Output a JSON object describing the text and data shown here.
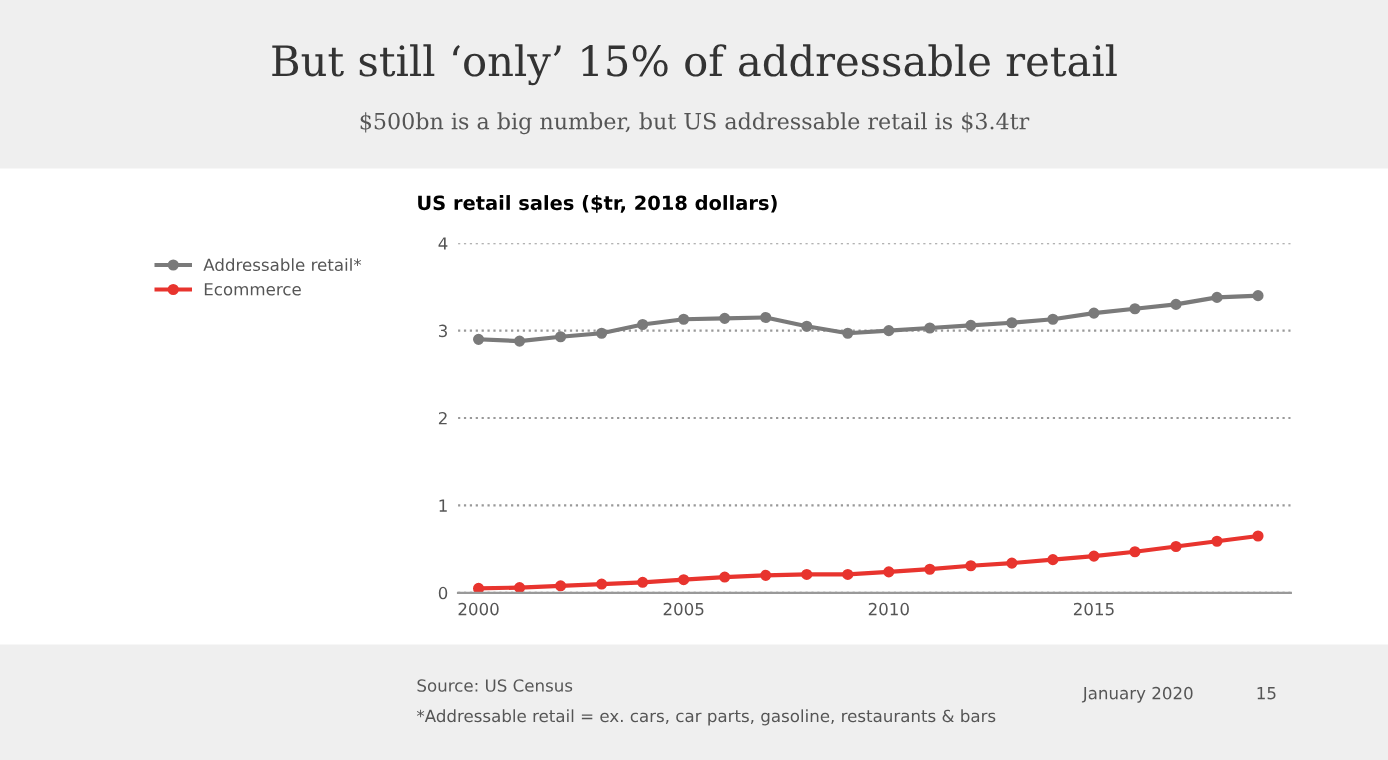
{
  "chart_data": {
    "type": "line",
    "title": "But still ‘only’ 15% of addressable retail",
    "subtitle": "$500bn is a big number, but US addressable retail is $3.4tr",
    "ylabel": "US retail sales ($tr, 2018 dollars)",
    "x": [
      2000,
      2001,
      2002,
      2003,
      2004,
      2005,
      2006,
      2007,
      2008,
      2009,
      2010,
      2011,
      2012,
      2013,
      2014,
      2015,
      2016,
      2017,
      2018,
      2019
    ],
    "series": [
      {
        "name": "Addressable retail*",
        "color": "#7a7a7a",
        "values": [
          2.9,
          2.88,
          2.93,
          2.97,
          3.07,
          3.13,
          3.14,
          3.15,
          3.05,
          2.97,
          3.0,
          3.03,
          3.06,
          3.09,
          3.13,
          3.2,
          3.25,
          3.3,
          3.38,
          3.4
        ]
      },
      {
        "name": "Ecommerce",
        "color": "#e8342e",
        "values": [
          0.05,
          0.06,
          0.08,
          0.1,
          0.12,
          0.15,
          0.18,
          0.2,
          0.21,
          0.21,
          0.24,
          0.27,
          0.31,
          0.34,
          0.38,
          0.42,
          0.47,
          0.53,
          0.59,
          0.65
        ]
      }
    ],
    "xlim": [
      1999.5,
      2019.8
    ],
    "xticks": [
      2000,
      2005,
      2010,
      2015
    ],
    "ylim": [
      0,
      4
    ],
    "yticks": [
      0,
      1,
      2,
      3,
      4
    ],
    "grid": "y",
    "legend": "top left",
    "marker": "circle",
    "line_style": "solid",
    "annotations": [
      "Source: US Census",
      "*Addressable retail = ex. cars, car parts, gasoline, restaurants & bars",
      "January 2020",
      "15"
    ]
  }
}
